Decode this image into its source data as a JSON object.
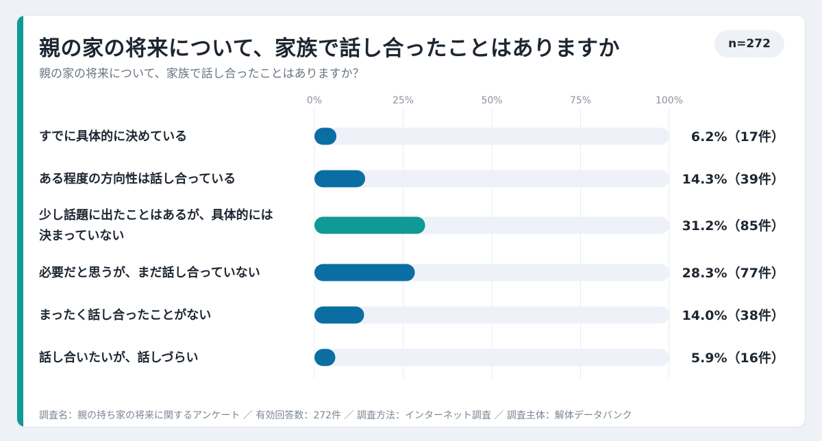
{
  "header": {
    "title": "親の家の将来について、家族で話し合ったことはありますか",
    "subtitle": "親の家の将来について、家族で話し合ったことはありますか？",
    "sample_size": "n=272"
  },
  "footer": {
    "note": "調査名：親の持ち家の将来に関するアンケート ／ 有効回答数：272件 ／ 調査方法：インターネット調査 ／ 調査主体：解体データバンク"
  },
  "colors": {
    "accent": "#0f9a96",
    "bar_blue": "#0b6ea3",
    "bar_teal": "#0f9a96",
    "track": "#eef1f7",
    "grid": "#e8ebf0"
  },
  "chart_data": {
    "type": "bar",
    "orientation": "horizontal",
    "xlim": [
      0,
      100
    ],
    "x_ticks": [
      "0%",
      "25%",
      "50%",
      "75%",
      "100%"
    ],
    "categories": [
      [
        "すでに具体的に決めている"
      ],
      [
        "ある程度の方向性は話し合っている"
      ],
      [
        "少し話題に出たことはあるが、具体的には",
        "決まっていない"
      ],
      [
        "必要だと思うが、まだ話し合っていない"
      ],
      [
        "まったく話し合ったことがない"
      ],
      [
        "話し合いたいが、話しづらい"
      ]
    ],
    "values": [
      6.2,
      14.3,
      31.2,
      28.3,
      14.0,
      5.9
    ],
    "value_labels": [
      "6.2%（17件）",
      "14.3%（39件）",
      "31.2%（85件）",
      "28.3%（77件）",
      "14.0%（38件）",
      "5.9%（16件）"
    ],
    "highlight_index": 2,
    "grid": true
  }
}
